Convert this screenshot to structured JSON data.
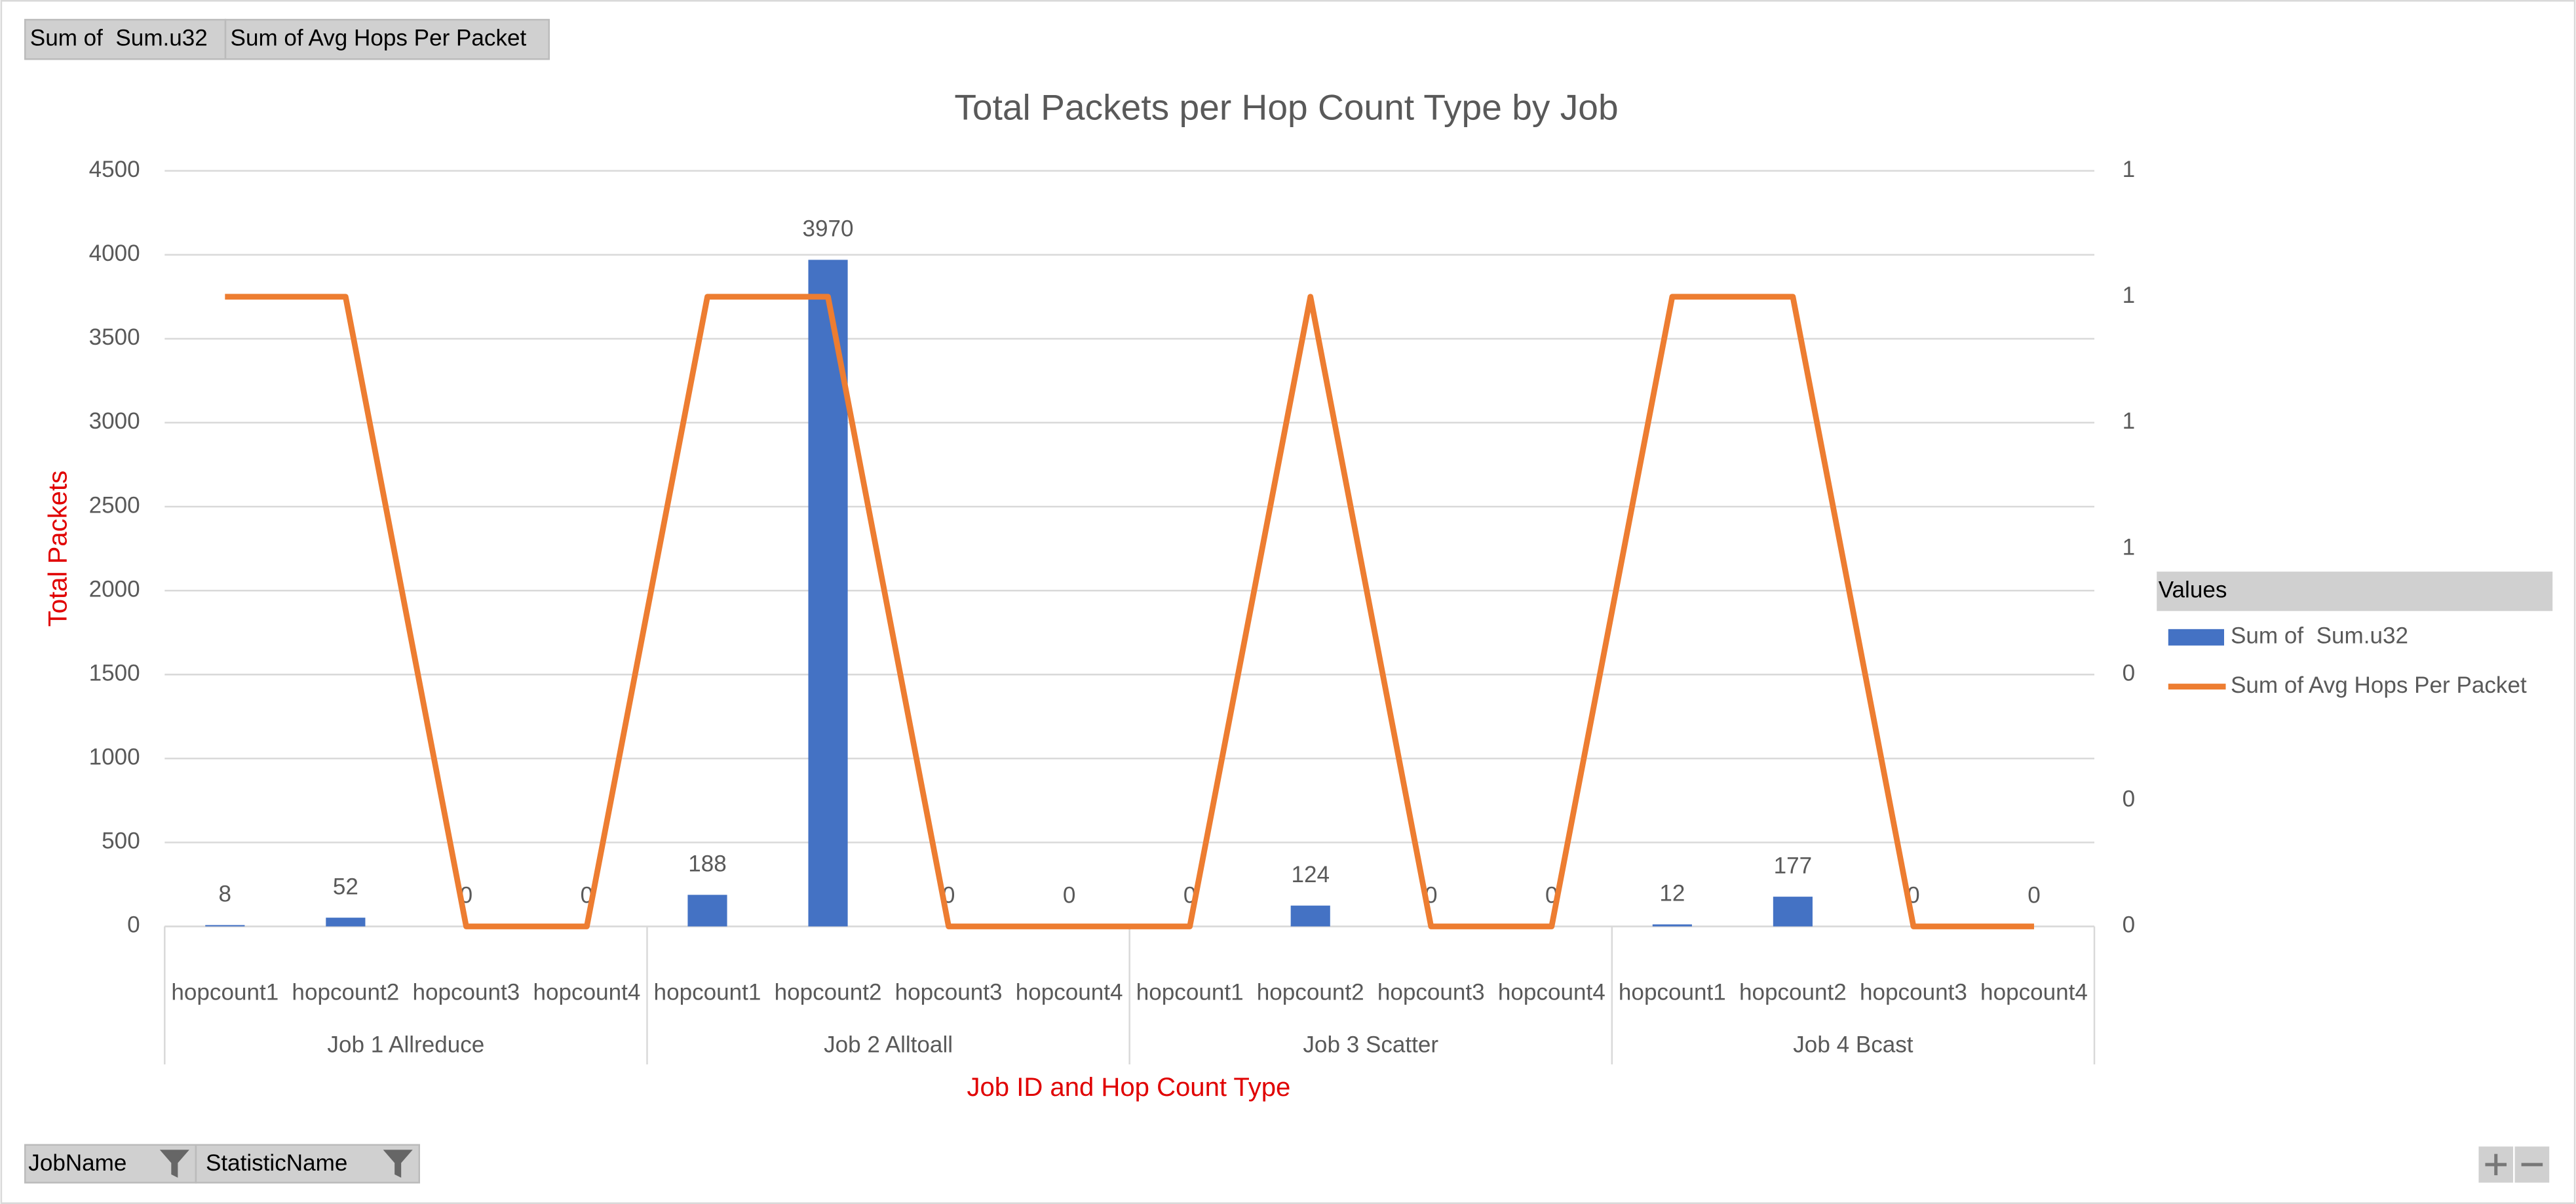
{
  "chart_data": {
    "type": "bar",
    "title": "Total Packets per Hop Count Type by Job",
    "x_label": "Job ID and Hop Count Type",
    "y_label": "Total Packets",
    "categories": [
      "hopcount1",
      "hopcount2",
      "hopcount3",
      "hopcount4",
      "hopcount1",
      "hopcount2",
      "hopcount3",
      "hopcount4",
      "hopcount1",
      "hopcount2",
      "hopcount3",
      "hopcount4",
      "hopcount1",
      "hopcount2",
      "hopcount3",
      "hopcount4"
    ],
    "groups": [
      "Job 1 Allreduce",
      "Job 2 Alltoall",
      "Job 3 Scatter",
      "Job 4 Bcast"
    ],
    "series": [
      {
        "name": "Sum of  Sum.u32",
        "type": "bar",
        "color": "#4472c4",
        "axis": "y",
        "values": [
          8,
          52,
          0,
          0,
          188,
          3970,
          0,
          0,
          0,
          124,
          0,
          0,
          12,
          177,
          0,
          0
        ]
      },
      {
        "name": "Sum of Avg Hops Per Packet",
        "type": "line",
        "color": "#ed7d31",
        "axis": "y2",
        "values": [
          1,
          1,
          0,
          0,
          1,
          1,
          0,
          0,
          0,
          1,
          0,
          0,
          1,
          1,
          0,
          0
        ]
      }
    ],
    "ylim": [
      0,
      4500
    ],
    "yticks": [
      0,
      500,
      1000,
      1500,
      2000,
      2500,
      3000,
      3500,
      4000,
      4500
    ],
    "y2lim": [
      0,
      1.2
    ],
    "y2ticks": [
      0,
      {
        "value": 0.2,
        "label": "0"
      },
      {
        "value": 0.4,
        "label": "0"
      },
      {
        "value": 0.6,
        "label": "1"
      },
      {
        "value": 0.8,
        "label": "1"
      },
      1,
      {
        "value": 1.2,
        "label": "1"
      }
    ],
    "grid": true,
    "data_labels": true,
    "legend_title": "Values",
    "legend_position": "right"
  },
  "field_buttons_top": [
    "Sum of  Sum.u32",
    "Sum of Avg Hops Per Packet"
  ],
  "field_buttons_bottom": [
    "JobName",
    "StatisticName"
  ]
}
